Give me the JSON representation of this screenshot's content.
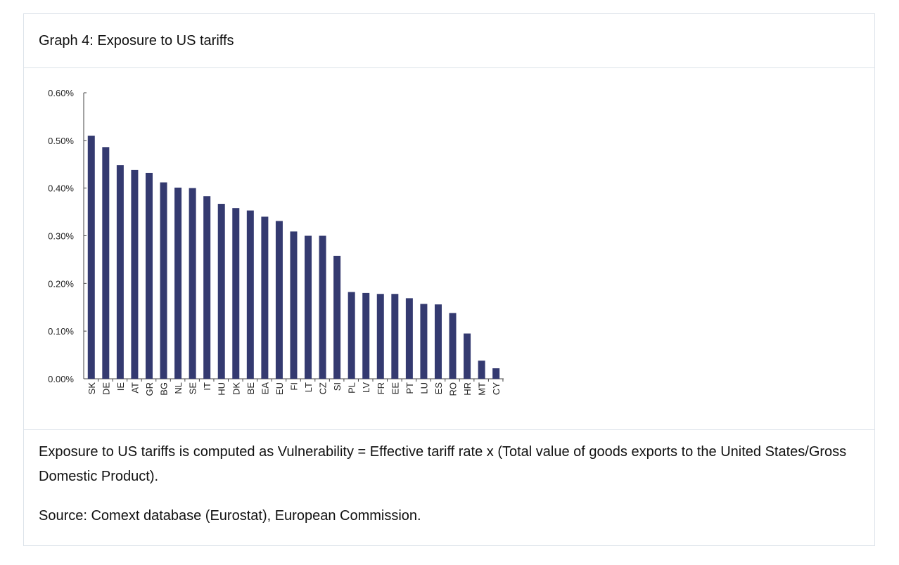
{
  "title": "Graph 4: Exposure to US tariffs",
  "note": "Exposure to US tariffs is computed as Vulnerability = Effective tariff rate x (Total value of goods exports to the United States/Gross Domestic Product).",
  "source": "Source: Comext database (Eurostat), European Commission.",
  "chart_data": {
    "type": "bar",
    "title": "Graph 4: Exposure to US tariffs",
    "xlabel": "",
    "ylabel": "",
    "ylim": [
      0,
      0.6
    ],
    "yticks": [
      "0.00%",
      "0.10%",
      "0.20%",
      "0.30%",
      "0.40%",
      "0.50%",
      "0.60%"
    ],
    "color": "#343a70",
    "categories": [
      "SK",
      "DE",
      "IE",
      "AT",
      "GR",
      "BG",
      "NL",
      "SE",
      "IT",
      "HU",
      "DK",
      "BE",
      "EA",
      "EU",
      "FI",
      "LT",
      "CZ",
      "SI",
      "PL",
      "LV",
      "FR",
      "EE",
      "PT",
      "LU",
      "ES",
      "RO",
      "HR",
      "MT",
      "CY"
    ],
    "values": [
      0.51,
      0.486,
      0.448,
      0.438,
      0.432,
      0.412,
      0.401,
      0.4,
      0.383,
      0.367,
      0.358,
      0.353,
      0.34,
      0.331,
      0.309,
      0.3,
      0.3,
      0.258,
      0.182,
      0.18,
      0.178,
      0.178,
      0.169,
      0.157,
      0.156,
      0.138,
      0.095,
      0.038,
      0.022
    ]
  }
}
